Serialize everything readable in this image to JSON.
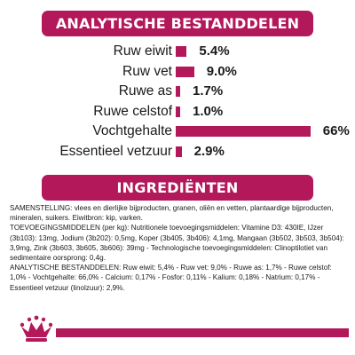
{
  "analytic_section": {
    "title": "ANALYTISCHE BESTANDDELEN"
  },
  "ingredients_section": {
    "title": "INGREDIËNTEN",
    "paragraphs": [
      "SAMENSTELLING: vlees en dierlijke bijproducten, granen, oliën en vetten, plantaardige bijproducten, mineralen, suikers. Eiwitbron: kip, varken.",
      "TOEVOEGINGSMIDDELEN (per kg): Nutritionele toevoegingsmiddelen: Vitamine D3: 430IE, IJzer (3b103): 13mg, Jodium (3b202): 0,5mg, Koper (3b405, 3b406): 4,1mg, Mangaan (3b502, 3b503, 3b504): 3,9mg, Zink (3b603, 3b605, 3b606): 39mg - Technologische toevoegingsmiddelen: Clinoptilotiet van sedimentaire oorsprong: 0,4g.",
      "ANALYTISCHE BESTANDDELEN: Ruw eiwit: 5,4% - Ruw vet: 9,0% - Ruwe as: 1,7% - Ruwe celstof: 1,0% - Vochtgehalte: 66,0% - Calcium: 0,17% - Fosfor: 0,11% - Kalium: 0,18% - Natrium: 0,17% - Essentieel vetzuur (linolzuur): 2,9%."
    ]
  },
  "chart_data": {
    "type": "bar",
    "orientation": "horizontal",
    "categories": [
      "Ruw eiwit",
      "Ruw vet",
      "Ruwe as",
      "Ruwe celstof",
      "Vochtgehalte",
      "Essentieel vetzuur"
    ],
    "values": [
      5.4,
      9.0,
      1.7,
      1.0,
      66,
      2.9
    ],
    "value_labels": [
      "5.4%",
      "9.0%",
      "1.7%",
      "1.0%",
      "66%",
      "2.9%"
    ],
    "title": "ANALYTISCHE BESTANDDELEN",
    "bar_color": "#b3185a",
    "grid": false,
    "legend": "none"
  },
  "colors": {
    "brand": "#b3185a",
    "text": "#1a1a1a",
    "background": "#ffffff"
  },
  "logo": {
    "icon": "royal-canin-crown-icon"
  }
}
